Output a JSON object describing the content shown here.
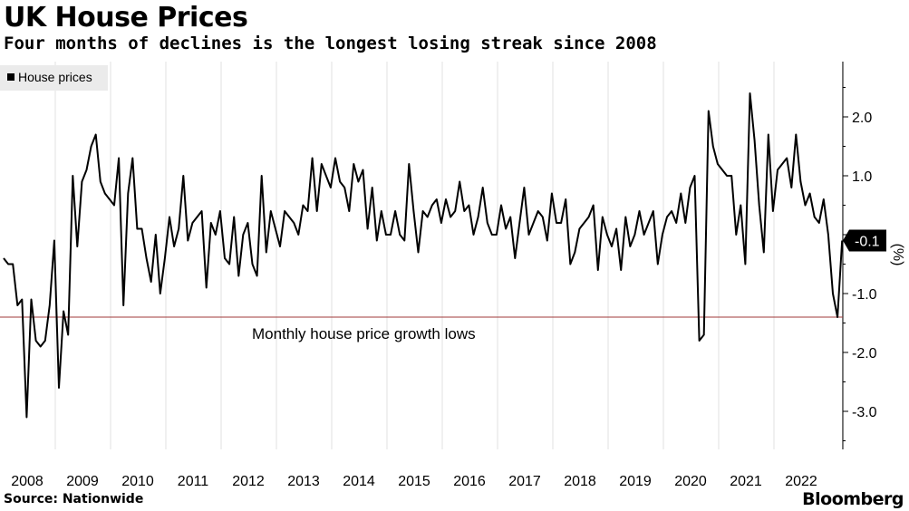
{
  "title": "UK House Prices",
  "subtitle": "Four months of declines is the longest losing streak since 2008",
  "source": "Source: Nationwide",
  "brand": "Bloomberg",
  "chart_data": {
    "type": "line",
    "ylabel": "(%)",
    "ylim": [
      -3.6,
      2.9
    ],
    "yticks": [
      2.0,
      1.0,
      0.0,
      -1.0,
      -2.0,
      -3.0
    ],
    "ytick_labels": [
      "2.0",
      "1.0",
      "0.0",
      "-1.0",
      "-2.0",
      "-3.0"
    ],
    "x_tick_labels": [
      "2008",
      "2009",
      "2010",
      "2011",
      "2012",
      "2013",
      "2014",
      "2015",
      "2016",
      "2017",
      "2018",
      "2019",
      "2020",
      "2021",
      "2022"
    ],
    "grid": "vertical year gridlines",
    "legend": {
      "position": "top-left",
      "entries": [
        "House prices"
      ]
    },
    "series": [
      {
        "name": "House prices",
        "color": "#000000",
        "start": "2008-01",
        "frequency": "monthly",
        "values": [
          -0.4,
          -0.5,
          -0.5,
          -1.2,
          -1.1,
          -3.1,
          -1.1,
          -1.8,
          -1.9,
          -1.8,
          -1.2,
          -0.1,
          -2.6,
          -1.3,
          -1.7,
          1.0,
          -0.2,
          0.9,
          1.1,
          1.5,
          1.7,
          0.9,
          0.7,
          0.6,
          0.5,
          1.3,
          -1.2,
          0.7,
          1.3,
          0.1,
          0.1,
          -0.4,
          -0.8,
          0.0,
          -1.0,
          -0.4,
          0.3,
          -0.2,
          0.1,
          1.0,
          -0.1,
          0.2,
          0.3,
          0.4,
          -0.9,
          0.2,
          0.0,
          0.4,
          -0.4,
          -0.5,
          0.3,
          -0.7,
          0.0,
          0.2,
          -0.5,
          -0.7,
          1.0,
          -0.3,
          0.4,
          0.1,
          -0.2,
          0.4,
          0.3,
          0.2,
          0.0,
          0.5,
          0.4,
          1.3,
          0.4,
          1.2,
          1.0,
          0.8,
          1.3,
          0.9,
          0.8,
          0.4,
          1.2,
          0.9,
          1.1,
          0.1,
          0.8,
          -0.1,
          0.4,
          0.0,
          0.0,
          0.4,
          0.0,
          -0.1,
          1.2,
          0.4,
          -0.3,
          0.4,
          0.3,
          0.5,
          0.6,
          0.2,
          0.6,
          0.3,
          0.4,
          0.9,
          0.4,
          0.5,
          0.0,
          0.3,
          0.8,
          0.2,
          0.0,
          0.0,
          0.5,
          0.1,
          0.3,
          -0.4,
          0.2,
          0.8,
          0.0,
          0.2,
          0.4,
          0.3,
          -0.1,
          0.7,
          0.2,
          0.2,
          0.6,
          -0.5,
          -0.3,
          0.1,
          0.2,
          0.3,
          0.5,
          -0.6,
          0.3,
          0.0,
          -0.2,
          0.1,
          -0.6,
          0.3,
          -0.2,
          0.0,
          0.4,
          0.0,
          0.2,
          0.4,
          -0.5,
          0.0,
          0.3,
          0.4,
          0.2,
          0.7,
          0.2,
          0.8,
          1.0,
          -1.8,
          -1.7,
          2.1,
          1.5,
          1.2,
          1.1,
          1.0,
          1.0,
          0.0,
          0.5,
          -0.5,
          2.4,
          1.6,
          0.5,
          -0.3,
          1.7,
          0.4,
          1.1,
          1.2,
          1.3,
          0.8,
          1.7,
          0.9,
          0.5,
          0.7,
          0.3,
          0.2,
          0.6,
          0.0,
          -1.0,
          -1.4,
          -0.1
        ]
      }
    ],
    "reference_line": {
      "value": -1.4,
      "color": "#a03a3a",
      "label": "Monthly house price growth lows"
    },
    "last_value_label": "-0.1"
  }
}
